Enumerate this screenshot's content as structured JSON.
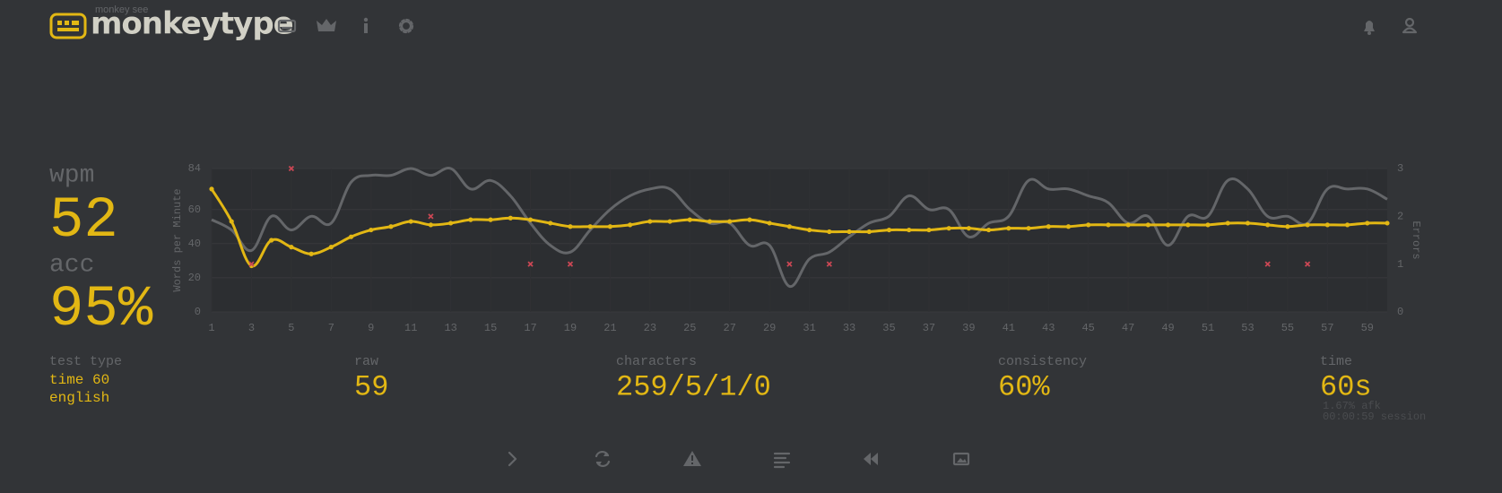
{
  "header": {
    "tagline": "monkey see",
    "logo": "monkeytype"
  },
  "stats": {
    "wpm_label": "wpm",
    "wpm": "52",
    "acc_label": "acc",
    "acc": "95%",
    "test_type_label": "test type",
    "test_type": [
      "time 60",
      "english"
    ],
    "raw_label": "raw",
    "raw": "59",
    "characters_label": "characters",
    "characters": "259/5/1/0",
    "consistency_label": "consistency",
    "consistency": "60%",
    "time_label": "time",
    "time": "60s",
    "afk": "1.67% afk",
    "session": "00:00:59 session"
  },
  "chart_data": {
    "type": "line",
    "y_label": "Words per Minute",
    "y2_label": "Errors",
    "x": [
      1,
      2,
      3,
      4,
      5,
      6,
      7,
      8,
      9,
      10,
      11,
      12,
      13,
      14,
      15,
      16,
      17,
      18,
      19,
      20,
      21,
      22,
      23,
      24,
      25,
      26,
      27,
      28,
      29,
      30,
      31,
      32,
      33,
      34,
      35,
      36,
      37,
      38,
      39,
      40,
      41,
      42,
      43,
      44,
      45,
      46,
      47,
      48,
      49,
      50,
      51,
      52,
      53,
      54,
      55,
      56,
      57,
      58,
      59,
      60
    ],
    "xlim": [
      1,
      60
    ],
    "xticks": [
      1,
      3,
      5,
      7,
      9,
      11,
      13,
      15,
      17,
      19,
      21,
      23,
      25,
      27,
      29,
      31,
      33,
      35,
      37,
      39,
      41,
      43,
      45,
      47,
      49,
      51,
      53,
      55,
      57,
      59
    ],
    "ylim": [
      0,
      84
    ],
    "yticks": [
      0,
      20,
      40,
      60,
      84
    ],
    "y2lim": [
      0,
      3
    ],
    "y2ticks": [
      0,
      1,
      2,
      3
    ],
    "grid": true,
    "series": [
      {
        "color": "#646669",
        "dots": false,
        "values": [
          54,
          48,
          36,
          56,
          48,
          56,
          52,
          76,
          80,
          80,
          84,
          80,
          84,
          72,
          77,
          68,
          52,
          39,
          35,
          48,
          60,
          68,
          72,
          72,
          60,
          52,
          52,
          39,
          39,
          15,
          31,
          35,
          44,
          52,
          56,
          68,
          60,
          60,
          44,
          52,
          56,
          77,
          72,
          72,
          68,
          64,
          52,
          56,
          39,
          56,
          56,
          77,
          72,
          56,
          56,
          52,
          72,
          72,
          72,
          66
        ]
      },
      {
        "color": "#e2b714",
        "dots": true,
        "values": [
          72,
          53,
          27,
          42,
          38,
          34,
          38,
          44,
          48,
          50,
          53,
          51,
          52,
          54,
          54,
          55,
          54,
          52,
          50,
          50,
          50,
          51,
          53,
          53,
          54,
          53,
          53,
          54,
          52,
          50,
          48,
          47,
          47,
          47,
          48,
          48,
          48,
          49,
          49,
          48,
          49,
          49,
          50,
          50,
          51,
          51,
          51,
          51,
          51,
          51,
          51,
          52,
          52,
          51,
          50,
          51,
          51,
          51,
          52,
          52
        ]
      },
      {
        "color": "#ca4754",
        "axis": "y2",
        "x": [
          3,
          5,
          12,
          17,
          19,
          30,
          32,
          54,
          56
        ],
        "values": [
          1,
          3,
          2,
          1,
          1,
          1,
          1,
          1,
          1
        ]
      }
    ]
  }
}
